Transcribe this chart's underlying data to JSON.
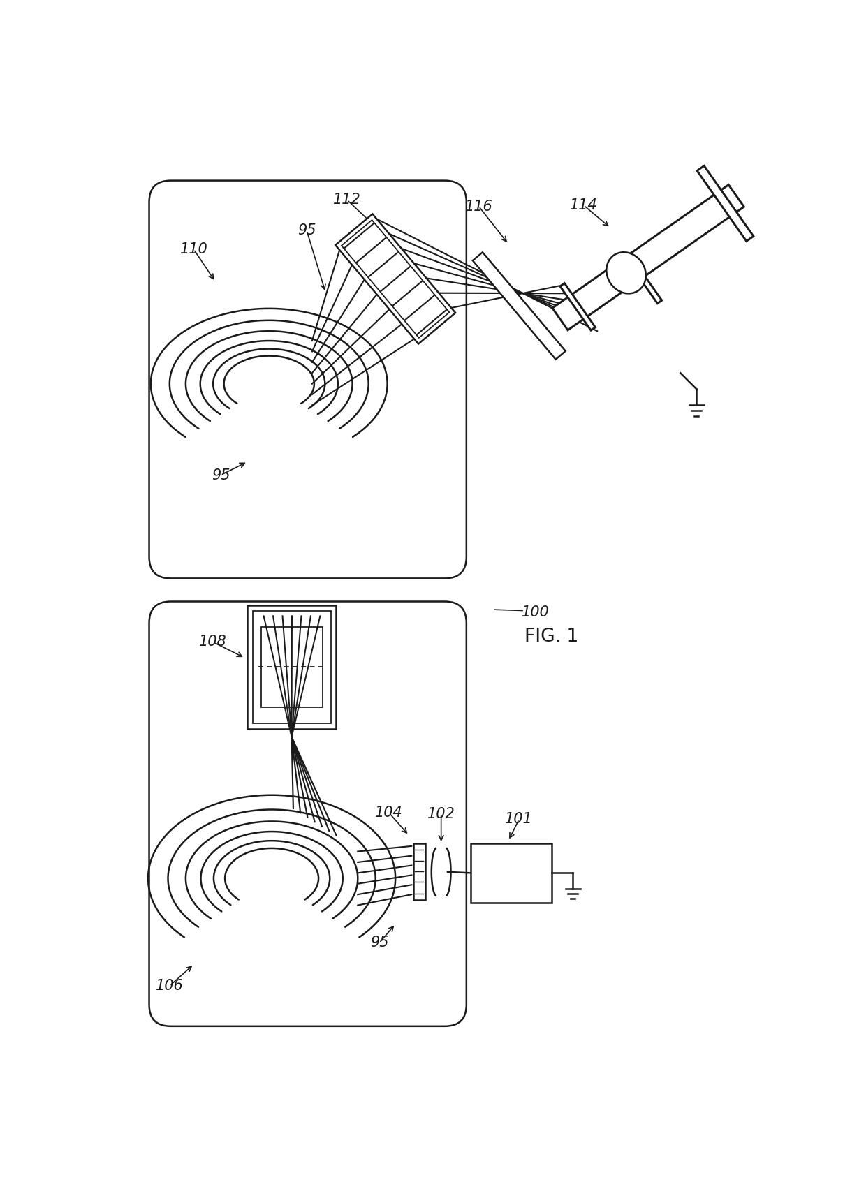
{
  "bg_color": "#ffffff",
  "lc": "#1a1a1a",
  "lw": 1.8,
  "figsize": [
    12.4,
    16.93
  ],
  "dpi": 100
}
